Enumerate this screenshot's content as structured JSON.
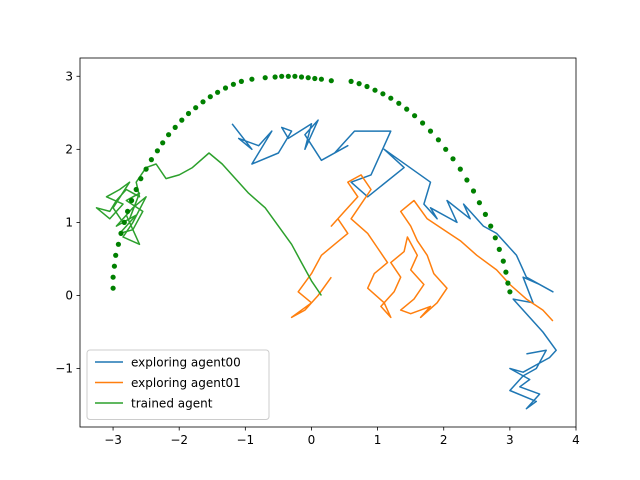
{
  "chart_data": {
    "type": "line",
    "title": "",
    "xlabel": "",
    "ylabel": "",
    "xlim": [
      -3.5,
      4.0
    ],
    "ylim": [
      -1.8,
      3.25
    ],
    "xticks": [
      -3,
      -2,
      -1,
      0,
      1,
      2,
      3,
      4
    ],
    "yticks": [
      -1,
      0,
      1,
      2,
      3
    ],
    "xtick_labels": [
      "−3",
      "−2",
      "−1",
      "0",
      "1",
      "2",
      "3",
      "4"
    ],
    "ytick_labels": [
      "−1",
      "0",
      "1",
      "2",
      "3"
    ],
    "grid": false,
    "legend_position": "lower-left",
    "series": [
      {
        "name": "exploring agent00",
        "color": "#1f77b4",
        "kind": "line",
        "x": [
          -1.2,
          -0.9,
          -1.1,
          -0.8,
          -0.6,
          -0.9,
          -0.5,
          -0.3,
          -0.45,
          -0.35,
          0.0,
          -0.1,
          0.1,
          -0.1,
          0.15,
          0.55,
          0.35,
          0.65,
          1.2,
          0.9,
          0.6,
          0.85,
          1.4,
          1.1,
          1.8,
          1.7,
          1.9,
          1.8,
          2.2,
          2.05,
          2.4,
          2.3,
          2.6,
          2.8,
          3.1,
          3.25,
          3.65,
          3.45,
          3.2,
          3.35,
          3.05,
          3.5,
          3.7,
          3.6,
          3.4,
          3.2,
          3.0,
          3.3,
          3.15,
          3.45,
          3.25,
          3.4,
          3.0,
          3.2,
          3.4,
          3.55,
          3.25
        ],
        "y": [
          2.35,
          2.0,
          2.15,
          2.05,
          2.25,
          1.8,
          1.95,
          2.25,
          2.3,
          2.15,
          2.35,
          2.0,
          2.4,
          2.2,
          1.85,
          2.05,
          1.95,
          2.25,
          2.25,
          1.65,
          1.55,
          1.35,
          1.75,
          2.0,
          1.55,
          1.25,
          1.05,
          1.2,
          1.0,
          1.3,
          1.05,
          1.25,
          0.95,
          0.85,
          0.55,
          0.25,
          0.05,
          0.15,
          0.25,
          -0.1,
          -0.05,
          -0.5,
          -0.75,
          -0.85,
          -0.95,
          -1.05,
          -1.0,
          -1.15,
          -1.25,
          -1.35,
          -1.55,
          -1.45,
          -1.3,
          -1.1,
          -1.0,
          -0.75,
          -0.8
        ]
      },
      {
        "name": "exploring agent01",
        "color": "#ff7f0e",
        "kind": "line",
        "x": [
          0.3,
          0.1,
          -0.1,
          -0.3,
          0.0,
          -0.2,
          0.0,
          0.15,
          0.35,
          0.55,
          0.4,
          0.3,
          0.5,
          0.7,
          0.55,
          0.75,
          0.9,
          0.75,
          0.6,
          0.85,
          1.0,
          1.15,
          0.95,
          0.85,
          1.1,
          1.2,
          1.05,
          1.25,
          1.35,
          1.2,
          1.4,
          1.45,
          1.6,
          1.5,
          1.7,
          1.55,
          1.35,
          1.5,
          1.8,
          1.65,
          1.9,
          2.05,
          1.85,
          1.75,
          1.6,
          1.5,
          1.35,
          1.55,
          1.75,
          2.0,
          2.25,
          2.5,
          2.8,
          3.0,
          3.25,
          3.5,
          3.65
        ],
        "y": [
          0.25,
          0.0,
          -0.2,
          -0.3,
          -0.1,
          0.05,
          0.3,
          0.55,
          0.7,
          0.85,
          1.05,
          0.95,
          1.15,
          1.35,
          1.55,
          1.65,
          1.45,
          1.25,
          1.05,
          0.85,
          0.65,
          0.45,
          0.3,
          0.1,
          -0.1,
          -0.3,
          -0.15,
          0.05,
          0.25,
          0.45,
          0.6,
          0.8,
          0.55,
          0.35,
          0.15,
          -0.05,
          -0.2,
          -0.25,
          -0.15,
          -0.3,
          -0.1,
          0.1,
          0.3,
          0.55,
          0.75,
          0.95,
          1.15,
          1.3,
          1.05,
          0.9,
          0.75,
          0.55,
          0.35,
          0.15,
          -0.05,
          -0.2,
          -0.35
        ]
      },
      {
        "name": "trained agent",
        "color": "#2ca02c",
        "kind": "line",
        "x": [
          0.15,
          0.0,
          -0.15,
          -0.3,
          -0.5,
          -0.7,
          -0.95,
          -1.15,
          -1.35,
          -1.55,
          -1.8,
          -2.0,
          -2.2,
          -2.35,
          -2.5,
          -2.65,
          -2.6,
          -2.8,
          -2.95,
          -3.05,
          -3.25,
          -3.05,
          -2.85,
          -3.1,
          -2.9,
          -2.75,
          -3.0,
          -2.85,
          -2.65,
          -2.9,
          -2.7,
          -2.55,
          -2.8,
          -2.6,
          -2.75,
          -2.95,
          -2.7,
          -2.5,
          -2.7,
          -2.85,
          -2.6,
          -2.8
        ],
        "y": [
          0.0,
          0.2,
          0.45,
          0.7,
          0.95,
          1.2,
          1.4,
          1.6,
          1.8,
          1.95,
          1.75,
          1.65,
          1.6,
          1.8,
          1.75,
          1.55,
          1.35,
          1.45,
          1.3,
          1.15,
          1.2,
          1.05,
          1.25,
          1.35,
          1.45,
          1.55,
          1.2,
          1.0,
          1.1,
          0.85,
          0.9,
          1.15,
          1.3,
          1.4,
          1.05,
          0.95,
          1.2,
          1.35,
          1.0,
          0.8,
          0.7,
          1.1
        ]
      },
      {
        "name": "",
        "color": "#008000",
        "kind": "scatter",
        "x": [
          -3.0,
          -3.0,
          -2.98,
          -2.96,
          -2.92,
          -2.88,
          -2.83,
          -2.78,
          -2.72,
          -2.65,
          -2.58,
          -2.5,
          -2.42,
          -2.33,
          -2.25,
          -2.16,
          -2.06,
          -1.96,
          -1.86,
          -1.75,
          -1.64,
          -1.53,
          -1.42,
          -1.3,
          -1.18,
          -1.06,
          -0.9,
          -0.7,
          -0.55,
          -0.45,
          -0.35,
          -0.25,
          -0.15,
          -0.05,
          0.05,
          0.15,
          0.3,
          0.6,
          0.72,
          0.84,
          0.96,
          1.08,
          1.2,
          1.32,
          1.44,
          1.56,
          1.68,
          1.8,
          1.92,
          2.03,
          2.14,
          2.25,
          2.35,
          2.45,
          2.54,
          2.63,
          2.71,
          2.78,
          2.84,
          2.9,
          2.94,
          2.97,
          3.0
        ],
        "y": [
          0.1,
          0.25,
          0.4,
          0.55,
          0.7,
          0.85,
          1.0,
          1.15,
          1.3,
          1.45,
          1.6,
          1.73,
          1.86,
          1.98,
          2.09,
          2.2,
          2.3,
          2.4,
          2.49,
          2.57,
          2.65,
          2.72,
          2.78,
          2.84,
          2.89,
          2.93,
          2.96,
          2.98,
          2.99,
          3.0,
          3.0,
          3.0,
          2.99,
          2.98,
          2.97,
          2.96,
          2.94,
          2.93,
          2.9,
          2.86,
          2.81,
          2.76,
          2.7,
          2.63,
          2.55,
          2.46,
          2.36,
          2.25,
          2.13,
          2.0,
          1.87,
          1.73,
          1.58,
          1.43,
          1.27,
          1.11,
          0.95,
          0.79,
          0.63,
          0.47,
          0.32,
          0.17,
          0.05
        ]
      }
    ]
  }
}
